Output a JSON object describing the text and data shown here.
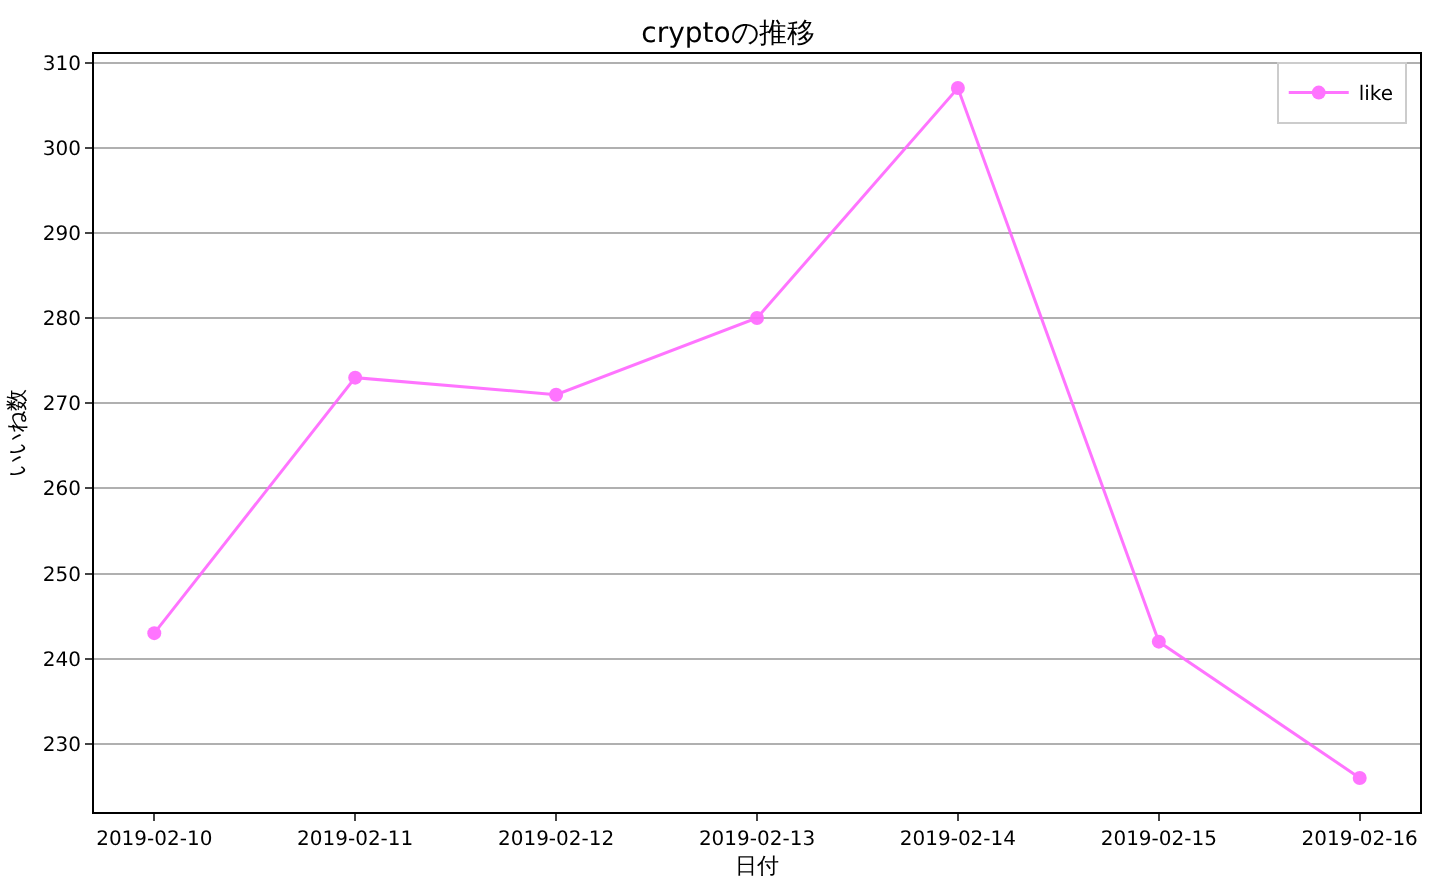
{
  "chart_data": {
    "type": "line",
    "title": "cryptoの推移",
    "xlabel": "日付",
    "ylabel": "いいね数",
    "x": [
      "2019-02-10",
      "2019-02-11",
      "2019-02-12",
      "2019-02-13",
      "2019-02-14",
      "2019-02-15",
      "2019-02-16"
    ],
    "series": [
      {
        "name": "like",
        "color": "#ff66ff",
        "values": [
          243,
          273,
          271,
          280,
          307,
          242,
          226
        ]
      }
    ],
    "xlim": [
      "2019-02-09T16:48",
      "2019-02-16T07:12"
    ],
    "xticks": [
      "2019-02-10",
      "2019-02-11",
      "2019-02-12",
      "2019-02-13",
      "2019-02-14",
      "2019-02-15",
      "2019-02-16"
    ],
    "ylim": [
      222,
      311
    ],
    "yticks": [
      230,
      240,
      250,
      260,
      270,
      280,
      290,
      300,
      310
    ],
    "grid": "y",
    "legend": "top right",
    "marker": "circle",
    "line_style": "solid"
  }
}
